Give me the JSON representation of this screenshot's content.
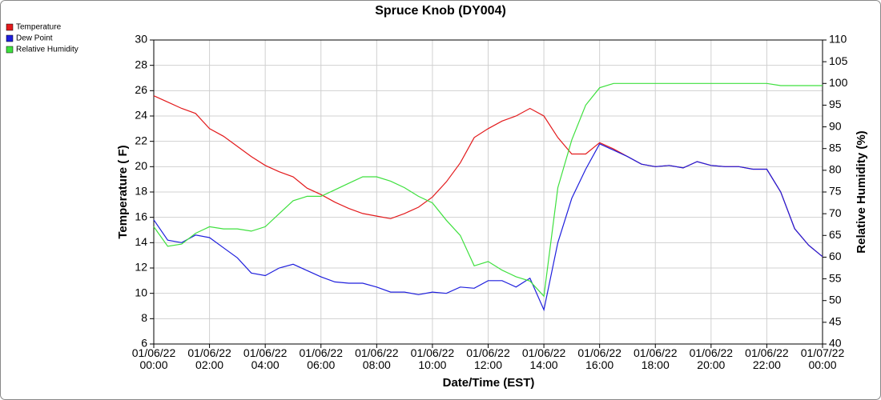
{
  "chart_data": {
    "type": "line",
    "title": "Spruce Knob (DY004)",
    "x_label": "Date/Time (EST)",
    "y_label": "Temperature ( F)",
    "y2_label": "Relative Humidity (%)",
    "x": [
      "01/06/22 00:00",
      "01/06/22 00:30",
      "01/06/22 01:00",
      "01/06/22 01:30",
      "01/06/22 02:00",
      "01/06/22 02:30",
      "01/06/22 03:00",
      "01/06/22 03:30",
      "01/06/22 04:00",
      "01/06/22 04:30",
      "01/06/22 05:00",
      "01/06/22 05:30",
      "01/06/22 06:00",
      "01/06/22 06:30",
      "01/06/22 07:00",
      "01/06/22 07:30",
      "01/06/22 08:00",
      "01/06/22 08:30",
      "01/06/22 09:00",
      "01/06/22 09:30",
      "01/06/22 10:00",
      "01/06/22 10:30",
      "01/06/22 11:00",
      "01/06/22 11:30",
      "01/06/22 12:00",
      "01/06/22 12:30",
      "01/06/22 13:00",
      "01/06/22 13:30",
      "01/06/22 14:00",
      "01/06/22 14:30",
      "01/06/22 15:00",
      "01/06/22 15:30",
      "01/06/22 16:00",
      "01/06/22 16:30",
      "01/06/22 17:00",
      "01/06/22 17:30",
      "01/06/22 18:00",
      "01/06/22 18:30",
      "01/06/22 19:00",
      "01/06/22 19:30",
      "01/06/22 20:00",
      "01/06/22 20:30",
      "01/06/22 21:00",
      "01/06/22 21:30",
      "01/06/22 22:00",
      "01/06/22 22:30",
      "01/06/22 23:00",
      "01/06/22 23:30",
      "01/07/22 00:00"
    ],
    "series": [
      {
        "name": "Temperature",
        "color": "#e31a1c",
        "values": [
          25.6,
          25.1,
          24.6,
          24.2,
          23.0,
          22.4,
          21.6,
          20.8,
          20.1,
          19.6,
          19.2,
          18.3,
          17.8,
          17.2,
          16.7,
          16.3,
          16.1,
          15.9,
          16.3,
          16.8,
          17.6,
          18.8,
          20.3,
          22.3,
          23.0,
          23.6,
          24.0,
          24.6,
          24.0,
          22.3,
          21.0,
          21.0,
          21.9,
          21.4,
          20.8,
          20.2,
          20.0,
          20.1,
          19.9,
          20.4,
          20.1,
          20.0,
          20.0,
          19.8,
          19.8,
          18.0,
          15.1,
          13.8,
          12.9
        ]
      },
      {
        "name": "Dew Point",
        "color": "#1f1fdd",
        "values": [
          15.8,
          14.2,
          14.0,
          14.6,
          14.4,
          13.6,
          12.8,
          11.6,
          11.4,
          12.0,
          12.3,
          11.8,
          11.3,
          10.9,
          10.8,
          10.8,
          10.5,
          10.1,
          10.1,
          9.9,
          10.1,
          10.0,
          10.5,
          10.4,
          11.0,
          11.0,
          10.5,
          11.2,
          8.7,
          14.0,
          17.5,
          19.8,
          21.8,
          21.3,
          20.8,
          20.2,
          20.0,
          20.1,
          19.9,
          20.4,
          20.1,
          20.0,
          20.0,
          19.8,
          19.8,
          18.0,
          15.1,
          13.8,
          12.9
        ]
      },
      {
        "name": "Relative Humidity",
        "color": "#3ee03e",
        "axis": "y2",
        "values": [
          67,
          62.5,
          63,
          65.5,
          67,
          66.5,
          66.5,
          66,
          67,
          70,
          73,
          74,
          74,
          75.5,
          77,
          78.5,
          78.5,
          77.5,
          76,
          74,
          72.5,
          68.5,
          65,
          58,
          59,
          57,
          55.5,
          54.5,
          51,
          76,
          87,
          95,
          99,
          100,
          100,
          100,
          100,
          100,
          100,
          100,
          100,
          100,
          100,
          100,
          100,
          99.5,
          99.5,
          99.5,
          99.5
        ]
      }
    ],
    "xlim": [
      "01/06/22 00:00",
      "01/07/22 00:00"
    ],
    "xticks": [
      "01/06/22 00:00",
      "01/06/22 02:00",
      "01/06/22 04:00",
      "01/06/22 06:00",
      "01/06/22 08:00",
      "01/06/22 10:00",
      "01/06/22 12:00",
      "01/06/22 14:00",
      "01/06/22 16:00",
      "01/06/22 18:00",
      "01/06/22 20:00",
      "01/06/22 22:00",
      "01/07/22 00:00"
    ],
    "ylim": [
      6,
      30
    ],
    "yticks": [
      6,
      8,
      10,
      12,
      14,
      16,
      18,
      20,
      22,
      24,
      26,
      28,
      30
    ],
    "y2lim": [
      40,
      110
    ],
    "y2ticks": [
      40,
      45,
      50,
      55,
      60,
      65,
      70,
      75,
      80,
      85,
      90,
      95,
      100,
      105,
      110
    ],
    "grid": true,
    "legend": "top-left"
  }
}
